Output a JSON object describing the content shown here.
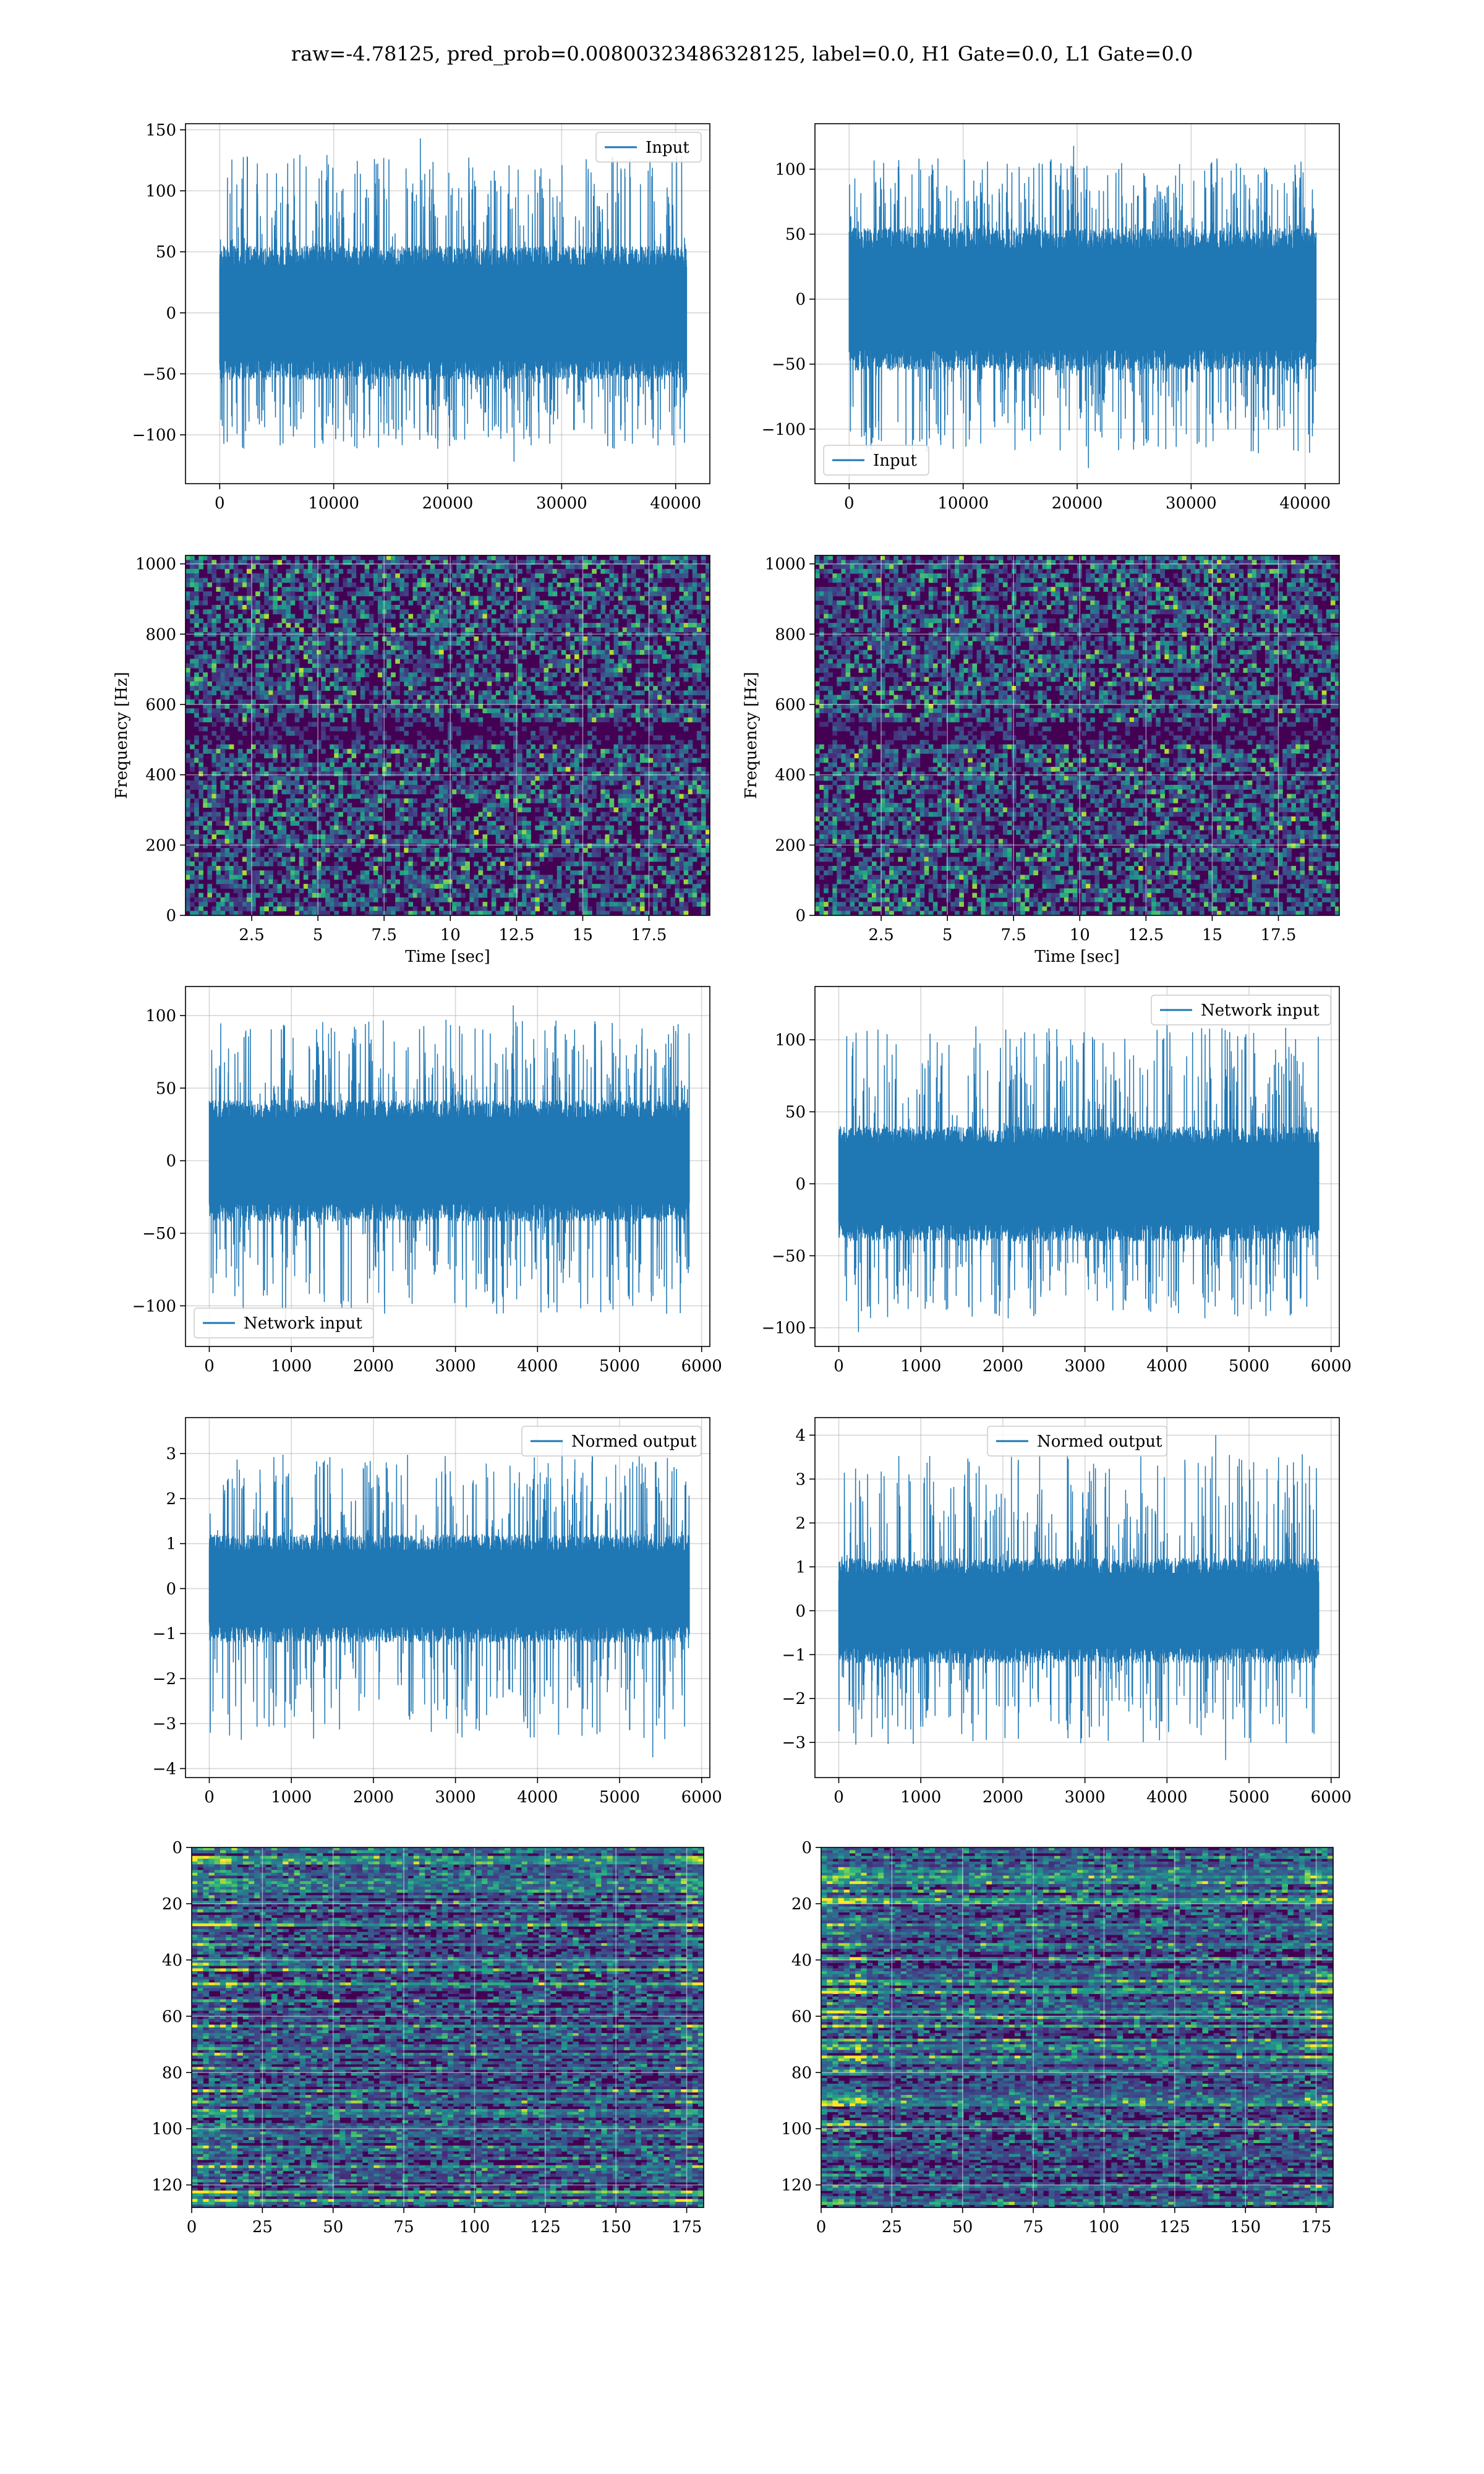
{
  "suptitle": "raw=-4.78125, pred_prob=0.00800323486328125, label=0.0, H1 Gate=0.0, L1 Gate=0.0",
  "colors": {
    "series": "#1f77b4",
    "grid": "#b0b0b0",
    "viridis_low": "#440154",
    "viridis_high": "#fde725"
  },
  "chart_data": [
    {
      "type": "line",
      "panel": "row1-left",
      "legend": "Input",
      "legend_position": "upper right",
      "xlim": [
        -3000,
        43000
      ],
      "ylim": [
        -140,
        155
      ],
      "xticks": [
        0,
        10000,
        20000,
        30000,
        40000
      ],
      "yticks": [
        -100,
        -50,
        0,
        50,
        100,
        150
      ],
      "x_range": [
        0,
        40960
      ],
      "core_amplitude": 55,
      "peak_amplitude": 143,
      "min_value": -122,
      "grid": true
    },
    {
      "type": "line",
      "panel": "row1-right",
      "legend": "Input",
      "legend_position": "lower left",
      "xlim": [
        -3000,
        43000
      ],
      "ylim": [
        -142,
        135
      ],
      "xticks": [
        0,
        10000,
        20000,
        30000,
        40000
      ],
      "yticks": [
        -100,
        -50,
        0,
        50,
        100
      ],
      "x_range": [
        0,
        40960
      ],
      "core_amplitude": 55,
      "peak_amplitude": 118,
      "min_value": -130,
      "grid": true
    },
    {
      "type": "heatmap",
      "panel": "row2-left",
      "xlabel": "Time [sec]",
      "ylabel": "Frequency [Hz]",
      "xlim": [
        0,
        19.8
      ],
      "ylim": [
        0,
        1024
      ],
      "xticks": [
        2.5,
        5.0,
        7.5,
        10.0,
        12.5,
        15.0,
        17.5
      ],
      "yticks": [
        0,
        200,
        400,
        600,
        800,
        1000
      ],
      "colormap": "viridis",
      "grid": true
    },
    {
      "type": "heatmap",
      "panel": "row2-right",
      "xlabel": "Time [sec]",
      "ylabel": "Frequency [Hz]",
      "xlim": [
        0,
        19.8
      ],
      "ylim": [
        0,
        1024
      ],
      "xticks": [
        2.5,
        5.0,
        7.5,
        10.0,
        12.5,
        15.0,
        17.5
      ],
      "yticks": [
        0,
        200,
        400,
        600,
        800,
        1000
      ],
      "colormap": "viridis",
      "grid": true
    },
    {
      "type": "line",
      "panel": "row3-left",
      "legend": "Network input",
      "legend_position": "lower left",
      "xlim": [
        -290,
        6100
      ],
      "ylim": [
        -128,
        120
      ],
      "xticks": [
        0,
        1000,
        2000,
        3000,
        4000,
        5000,
        6000
      ],
      "yticks": [
        -100,
        -50,
        0,
        50,
        100
      ],
      "x_range": [
        0,
        5850
      ],
      "core_amplitude": 42,
      "peak_amplitude": 107,
      "min_value": -117,
      "grid": true
    },
    {
      "type": "line",
      "panel": "row3-right",
      "legend": "Network input",
      "legend_position": "upper right",
      "xlim": [
        -290,
        6100
      ],
      "ylim": [
        -113,
        137
      ],
      "xticks": [
        0,
        1000,
        2000,
        3000,
        4000,
        5000,
        6000
      ],
      "yticks": [
        -100,
        -50,
        0,
        50,
        100
      ],
      "x_range": [
        0,
        5850
      ],
      "core_amplitude": 40,
      "peak_amplitude": 122,
      "min_value": -103,
      "grid": true
    },
    {
      "type": "line",
      "panel": "row4-left",
      "legend": "Normed output",
      "legend_position": "upper right",
      "xlim": [
        -290,
        6100
      ],
      "ylim": [
        -4.2,
        3.8
      ],
      "xticks": [
        0,
        1000,
        2000,
        3000,
        4000,
        5000,
        6000
      ],
      "yticks": [
        -4,
        -3,
        -2,
        -1,
        0,
        1,
        2,
        3
      ],
      "x_range": [
        0,
        5850
      ],
      "core_amplitude": 1.2,
      "peak_amplitude": 3.3,
      "min_value": -3.75,
      "grid": true
    },
    {
      "type": "line",
      "panel": "row4-right",
      "legend": "Normed output",
      "legend_position": "upper center",
      "xlim": [
        -290,
        6100
      ],
      "ylim": [
        -3.8,
        4.4
      ],
      "xticks": [
        0,
        1000,
        2000,
        3000,
        4000,
        5000,
        6000
      ],
      "yticks": [
        -3,
        -2,
        -1,
        0,
        1,
        2,
        3,
        4
      ],
      "x_range": [
        0,
        5850
      ],
      "core_amplitude": 1.2,
      "peak_amplitude": 4.0,
      "min_value": -3.4,
      "grid": true
    },
    {
      "type": "heatmap",
      "panel": "row5-left",
      "xlim": [
        0,
        181
      ],
      "ylim": [
        128,
        0
      ],
      "xticks": [
        0,
        25,
        50,
        75,
        100,
        125,
        150,
        175
      ],
      "yticks": [
        0,
        20,
        40,
        60,
        80,
        100,
        120
      ],
      "colormap": "viridis",
      "grid": true
    },
    {
      "type": "heatmap",
      "panel": "row5-right",
      "xlim": [
        0,
        181
      ],
      "ylim": [
        128,
        0
      ],
      "xticks": [
        0,
        25,
        50,
        75,
        100,
        125,
        150,
        175
      ],
      "yticks": [
        0,
        20,
        40,
        60,
        80,
        100,
        120
      ],
      "colormap": "viridis",
      "grid": true
    }
  ]
}
